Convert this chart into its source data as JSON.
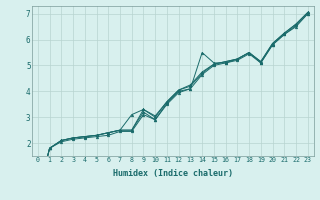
{
  "xlabel": "Humidex (Indice chaleur)",
  "bg_color": "#d8f0ee",
  "grid_color": "#b8d4d0",
  "line_color": "#1a6b6b",
  "xlim": [
    -0.5,
    23.5
  ],
  "ylim": [
    1.5,
    7.3
  ],
  "xticks": [
    0,
    1,
    2,
    3,
    4,
    5,
    6,
    7,
    8,
    9,
    10,
    11,
    12,
    13,
    14,
    15,
    16,
    17,
    18,
    19,
    20,
    21,
    22,
    23
  ],
  "yticks": [
    2,
    3,
    4,
    5,
    6,
    7
  ],
  "series": [
    [
      0,
      1.8,
      2.1,
      2.2,
      2.25,
      2.3,
      2.4,
      2.5,
      2.5,
      3.2,
      2.9,
      3.55,
      4.0,
      4.1,
      5.5,
      5.1,
      5.1,
      5.25,
      5.5,
      5.1,
      5.8,
      6.2,
      6.55,
      7.0
    ],
    [
      0,
      1.8,
      2.1,
      2.2,
      2.25,
      2.3,
      2.4,
      2.5,
      2.5,
      3.3,
      3.0,
      3.6,
      4.05,
      4.2,
      4.7,
      5.05,
      5.15,
      5.25,
      5.5,
      5.15,
      5.85,
      6.25,
      6.6,
      7.05
    ],
    [
      0,
      1.8,
      2.1,
      2.2,
      2.25,
      2.3,
      2.4,
      2.5,
      3.1,
      3.3,
      3.05,
      3.6,
      4.05,
      4.25,
      4.75,
      5.05,
      5.15,
      5.25,
      5.5,
      5.15,
      5.85,
      6.25,
      6.6,
      7.05
    ],
    [
      0,
      1.8,
      2.05,
      2.15,
      2.2,
      2.25,
      2.3,
      2.45,
      2.45,
      3.1,
      2.9,
      3.5,
      3.95,
      4.1,
      4.65,
      5.0,
      5.1,
      5.2,
      5.45,
      5.1,
      5.8,
      6.2,
      6.5,
      7.0
    ]
  ]
}
